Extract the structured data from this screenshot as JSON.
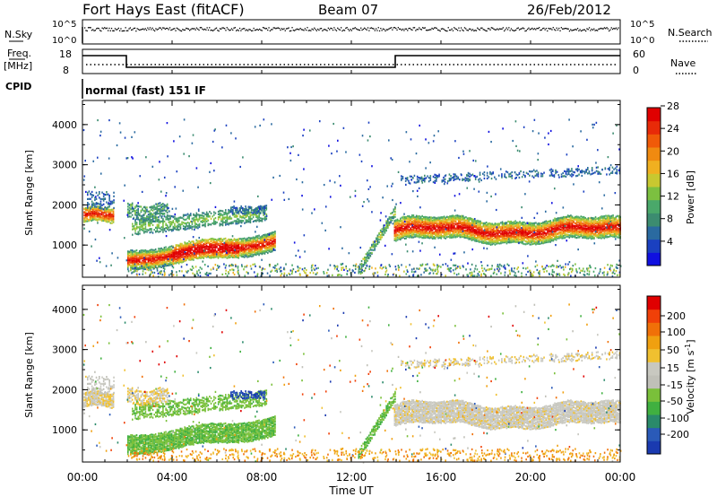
{
  "header": {
    "station": "Fort Hays East (fitACF)",
    "beam": "Beam 07",
    "date": "26/Feb/2012"
  },
  "status_panels": {
    "nsky": {
      "label": "N.Sky",
      "ticks": [
        "10^5",
        "10^0"
      ],
      "right_label": "N.Search",
      "right_ticks": [
        "10^5",
        "10^0"
      ]
    },
    "freq": {
      "label_line1": "Freq.",
      "label_line2": "[MHz]",
      "ticks": [
        "18",
        "8"
      ],
      "right_label": "Nave",
      "right_ticks": [
        "60",
        "0"
      ]
    },
    "cpid": {
      "label": "CPID",
      "value": "normal (fast) 151 IF"
    }
  },
  "time_axis": {
    "label": "Time UT",
    "ticks": [
      "00:00",
      "04:00",
      "08:00",
      "12:00",
      "16:00",
      "20:00",
      "00:00"
    ]
  },
  "chart_data": [
    {
      "type": "heatmap",
      "quantity": "power",
      "ylabel": "Slant Range [km]",
      "yticks": [
        1000,
        2000,
        3000,
        4000
      ],
      "ylim": [
        200,
        4600
      ],
      "xlim_hours": [
        0,
        24
      ],
      "colorbar": {
        "label": "Power [dB]",
        "ticks": [
          "4",
          "8",
          "12",
          "16",
          "20",
          "24",
          "28"
        ],
        "colors": [
          "#1010e0",
          "#1a40c0",
          "#2a6aa0",
          "#3c8c70",
          "#4aa86a",
          "#7cc040",
          "#c8c830",
          "#f0b020",
          "#f08a10",
          "#f05a08",
          "#e82a08",
          "#e00000"
        ]
      }
    },
    {
      "type": "heatmap",
      "quantity": "velocity",
      "ylabel": "Slant Range [km]",
      "yticks": [
        1000,
        2000,
        3000,
        4000
      ],
      "ylim": [
        200,
        4600
      ],
      "xlim_hours": [
        0,
        24
      ],
      "colorbar": {
        "label": "Velocity [m s",
        "label_sup": "-1",
        "label_end": "]",
        "ticks": [
          "200",
          "100",
          "50",
          "15",
          "-15",
          "-50",
          "-100",
          "-200"
        ],
        "colors": [
          "#1a3ab0",
          "#2a5ab8",
          "#2a8a6a",
          "#40b040",
          "#7ac03a",
          "#c0c0b8",
          "#c8c8c0",
          "#f0c030",
          "#f0a010",
          "#f07008",
          "#f04008",
          "#e00000"
        ]
      }
    }
  ]
}
